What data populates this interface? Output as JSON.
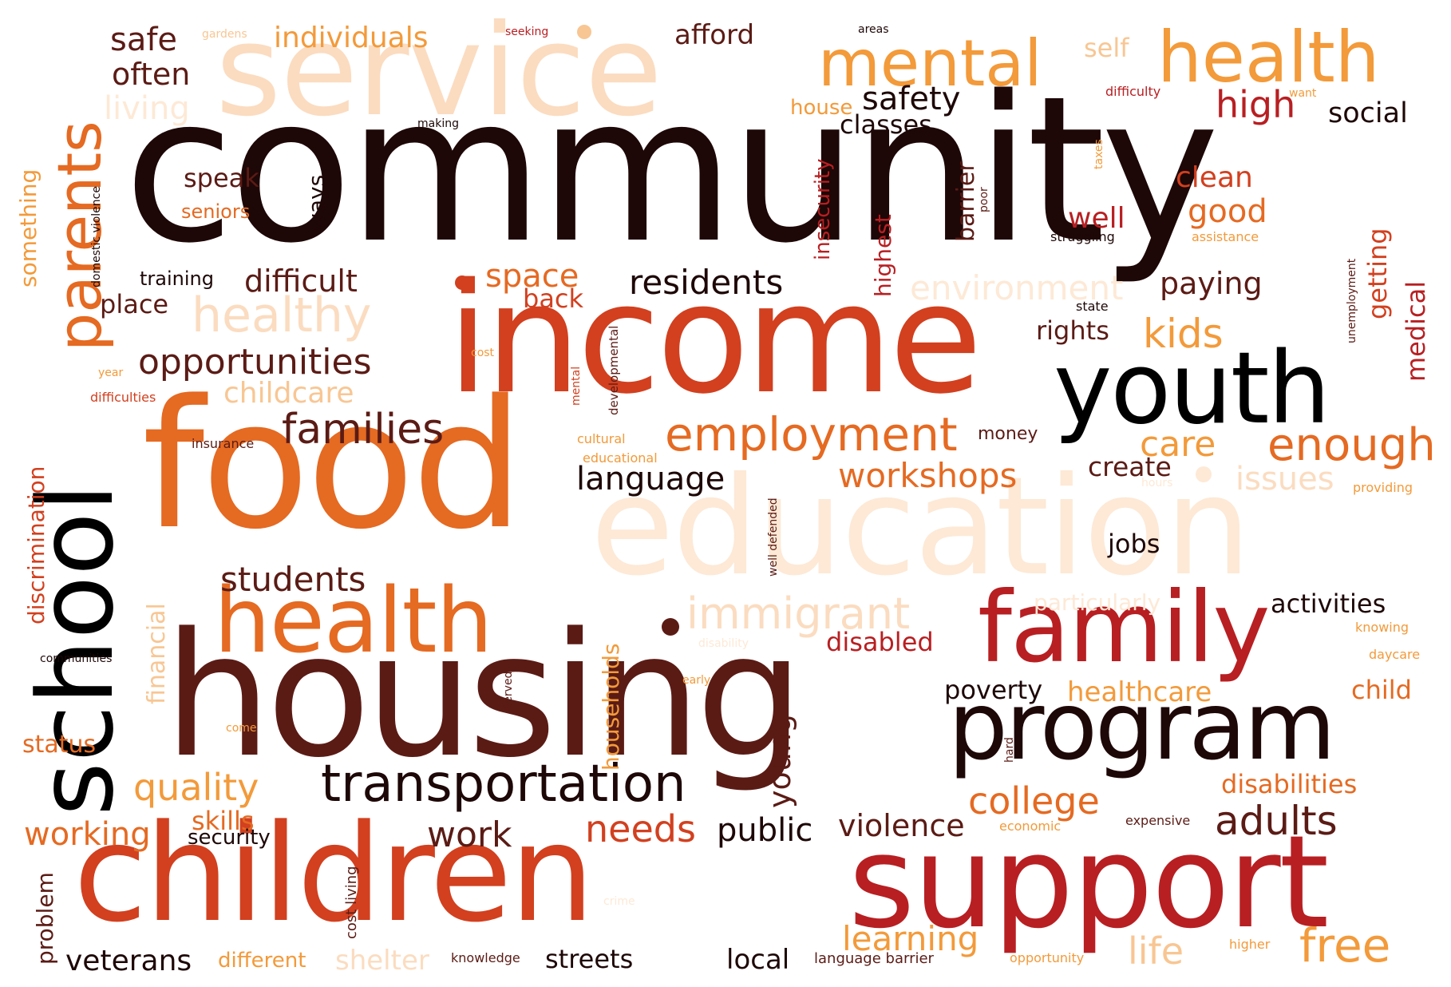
{
  "palette": {
    "darkest": "#1e0707",
    "black": "#000000",
    "maroon": "#4a1212",
    "brown": "#5b1b15",
    "red": "#b81f22",
    "redorange": "#d2401f",
    "orange": "#e56a22",
    "amber": "#f39a3a",
    "peach": "#f8c693",
    "light": "#fbdcc0",
    "pale": "#fde9d6"
  },
  "words": [
    {
      "text": "community",
      "color": "darkest"
    },
    {
      "text": "service",
      "color": "light"
    },
    {
      "text": "income",
      "color": "redorange"
    },
    {
      "text": "food",
      "color": "orange"
    },
    {
      "text": "education",
      "color": "pale"
    },
    {
      "text": "housing",
      "color": "brown"
    },
    {
      "text": "children",
      "color": "redorange"
    },
    {
      "text": "support",
      "color": "red"
    },
    {
      "text": "school",
      "color": "black"
    },
    {
      "text": "health",
      "color": "orange"
    },
    {
      "text": "health",
      "color": "amber"
    },
    {
      "text": "youth",
      "color": "black"
    },
    {
      "text": "family",
      "color": "red"
    },
    {
      "text": "program",
      "color": "darkest"
    },
    {
      "text": "parents",
      "color": "orange"
    },
    {
      "text": "mental",
      "color": "amber"
    },
    {
      "text": "employment",
      "color": "orange"
    },
    {
      "text": "transportation",
      "color": "darkest"
    },
    {
      "text": "immigrant",
      "color": "light"
    },
    {
      "text": "healthy",
      "color": "light"
    },
    {
      "text": "families",
      "color": "brown"
    },
    {
      "text": "opportunities",
      "color": "brown"
    },
    {
      "text": "residents",
      "color": "darkest"
    },
    {
      "text": "environment",
      "color": "pale"
    },
    {
      "text": "difficult",
      "color": "brown"
    },
    {
      "text": "safety",
      "color": "darkest"
    },
    {
      "text": "high",
      "color": "red"
    },
    {
      "text": "social",
      "color": "darkest"
    },
    {
      "text": "classes",
      "color": "darkest"
    },
    {
      "text": "afford",
      "color": "brown"
    },
    {
      "text": "individuals",
      "color": "amber"
    },
    {
      "text": "safe",
      "color": "brown"
    },
    {
      "text": "often",
      "color": "brown"
    },
    {
      "text": "living",
      "color": "pale"
    },
    {
      "text": "self",
      "color": "peach"
    },
    {
      "text": "house",
      "color": "amber"
    },
    {
      "text": "care",
      "color": "amber"
    },
    {
      "text": "enough",
      "color": "orange"
    },
    {
      "text": "kids",
      "color": "amber"
    },
    {
      "text": "rights",
      "color": "brown"
    },
    {
      "text": "paying",
      "color": "brown"
    },
    {
      "text": "good",
      "color": "orange"
    },
    {
      "text": "clean",
      "color": "redorange"
    },
    {
      "text": "well",
      "color": "red"
    },
    {
      "text": "space",
      "color": "orange"
    },
    {
      "text": "back",
      "color": "redorange"
    },
    {
      "text": "workshops",
      "color": "orange"
    },
    {
      "text": "language",
      "color": "darkest"
    },
    {
      "text": "create",
      "color": "brown"
    },
    {
      "text": "issues",
      "color": "light"
    },
    {
      "text": "jobs",
      "color": "darkest"
    },
    {
      "text": "speak",
      "color": "brown"
    },
    {
      "text": "seniors",
      "color": "orange"
    },
    {
      "text": "training",
      "color": "darkest"
    },
    {
      "text": "place",
      "color": "brown"
    },
    {
      "text": "childcare",
      "color": "peach"
    },
    {
      "text": "students",
      "color": "brown"
    },
    {
      "text": "quality",
      "color": "amber"
    },
    {
      "text": "skills",
      "color": "orange"
    },
    {
      "text": "working",
      "color": "orange"
    },
    {
      "text": "security",
      "color": "darkest"
    },
    {
      "text": "work",
      "color": "brown"
    },
    {
      "text": "needs",
      "color": "redorange"
    },
    {
      "text": "public",
      "color": "darkest"
    },
    {
      "text": "violence",
      "color": "brown"
    },
    {
      "text": "college",
      "color": "orange"
    },
    {
      "text": "adults",
      "color": "brown"
    },
    {
      "text": "disabilities",
      "color": "orange"
    },
    {
      "text": "activities",
      "color": "darkest"
    },
    {
      "text": "disabled",
      "color": "red"
    },
    {
      "text": "poverty",
      "color": "darkest"
    },
    {
      "text": "healthcare",
      "color": "amber"
    },
    {
      "text": "child",
      "color": "orange"
    },
    {
      "text": "learning",
      "color": "amber"
    },
    {
      "text": "life",
      "color": "peach"
    },
    {
      "text": "free",
      "color": "amber"
    },
    {
      "text": "veterans",
      "color": "darkest"
    },
    {
      "text": "different",
      "color": "amber"
    },
    {
      "text": "shelter",
      "color": "light"
    },
    {
      "text": "streets",
      "color": "darkest"
    },
    {
      "text": "local",
      "color": "darkest"
    },
    {
      "text": "status",
      "color": "orange"
    },
    {
      "text": "money",
      "color": "brown"
    },
    {
      "text": "particularly",
      "color": "pale"
    },
    {
      "text": "expensive",
      "color": "brown"
    },
    {
      "text": "economic",
      "color": "amber"
    },
    {
      "text": "knowing",
      "color": "amber"
    },
    {
      "text": "daycare",
      "color": "amber"
    },
    {
      "text": "providing",
      "color": "amber"
    },
    {
      "text": "struggling",
      "color": "darkest"
    },
    {
      "text": "assistance",
      "color": "amber"
    },
    {
      "text": "state",
      "color": "darkest"
    },
    {
      "text": "difficulty",
      "color": "red"
    },
    {
      "text": "want",
      "color": "amber"
    },
    {
      "text": "making",
      "color": "darkest"
    },
    {
      "text": "gardens",
      "color": "peach"
    },
    {
      "text": "seeking",
      "color": "red"
    },
    {
      "text": "areas",
      "color": "darkest"
    },
    {
      "text": "insurance",
      "color": "brown"
    },
    {
      "text": "cultural",
      "color": "amber"
    },
    {
      "text": "educational",
      "color": "amber"
    },
    {
      "text": "cost",
      "color": "amber"
    },
    {
      "text": "year",
      "color": "amber"
    },
    {
      "text": "difficulties",
      "color": "redorange"
    },
    {
      "text": "communities",
      "color": "darkest"
    },
    {
      "text": "early",
      "color": "amber"
    },
    {
      "text": "come",
      "color": "amber"
    },
    {
      "text": "language barrier",
      "color": "brown"
    },
    {
      "text": "knowledge",
      "color": "brown"
    },
    {
      "text": "opportunity",
      "color": "amber"
    },
    {
      "text": "higher",
      "color": "amber"
    },
    {
      "text": "hours",
      "color": "pale"
    },
    {
      "text": "disability",
      "color": "pale"
    },
    {
      "text": "crime",
      "color": "pale"
    },
    {
      "text": "something",
      "color": "amber"
    },
    {
      "text": "domestic violence",
      "color": "darkest"
    },
    {
      "text": "discrimination",
      "color": "redorange"
    },
    {
      "text": "financial",
      "color": "peach"
    },
    {
      "text": "problem",
      "color": "brown"
    },
    {
      "text": "cost living",
      "color": "brown"
    },
    {
      "text": "ways",
      "color": "darkest"
    },
    {
      "text": "highest",
      "color": "red"
    },
    {
      "text": "insecurity",
      "color": "red"
    },
    {
      "text": "barrier",
      "color": "brown"
    },
    {
      "text": "poor",
      "color": "brown"
    },
    {
      "text": "developmental",
      "color": "brown"
    },
    {
      "text": "mental",
      "color": "redorange"
    },
    {
      "text": "well defended",
      "color": "brown"
    },
    {
      "text": "households",
      "color": "amber"
    },
    {
      "text": "served",
      "color": "brown"
    },
    {
      "text": "young",
      "color": "brown"
    },
    {
      "text": "getting",
      "color": "redorange"
    },
    {
      "text": "medical",
      "color": "red"
    },
    {
      "text": "unemployment",
      "color": "brown"
    },
    {
      "text": "taxes",
      "color": "amber"
    },
    {
      "text": "hard",
      "color": "brown"
    }
  ]
}
